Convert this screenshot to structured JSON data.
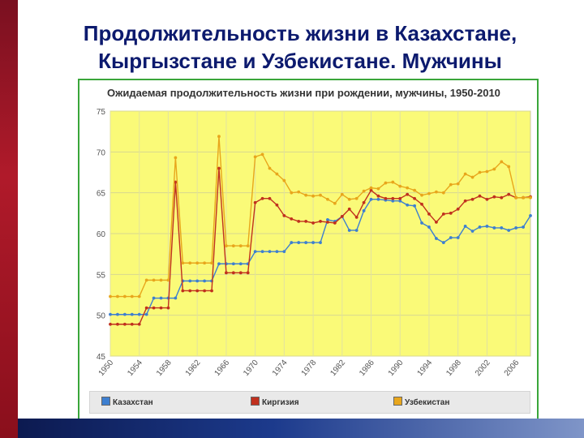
{
  "slide": {
    "title_line1": "Продолжительность жизни в Казахстане,",
    "title_line2": "Кыргызстане и Узбекистане. Мужчины"
  },
  "chart_data": {
    "type": "line",
    "title": "Ожидаемая продолжительность жизни при рождении, мужчины, 1950-2010",
    "ylim": [
      45,
      75
    ],
    "yticks": [
      45,
      50,
      55,
      60,
      65,
      70,
      75
    ],
    "xlim": [
      1950,
      2008
    ],
    "xticks": [
      1950,
      1954,
      1958,
      1962,
      1966,
      1970,
      1974,
      1978,
      1982,
      1986,
      1990,
      1994,
      1998,
      2002,
      2006
    ],
    "grid": true,
    "legend_position": "bottom",
    "plot_background": "#fafa78",
    "x": [
      1950,
      1951,
      1952,
      1953,
      1954,
      1955,
      1956,
      1957,
      1958,
      1959,
      1960,
      1961,
      1962,
      1963,
      1964,
      1965,
      1966,
      1967,
      1968,
      1969,
      1970,
      1971,
      1972,
      1973,
      1974,
      1975,
      1976,
      1977,
      1978,
      1979,
      1980,
      1981,
      1982,
      1983,
      1984,
      1985,
      1986,
      1987,
      1988,
      1989,
      1990,
      1991,
      1992,
      1993,
      1994,
      1995,
      1996,
      1997,
      1998,
      1999,
      2000,
      2001,
      2002,
      2003,
      2004,
      2005,
      2006,
      2007,
      2008
    ],
    "series": [
      {
        "name": "Казахстан",
        "color": "#3d7fd0",
        "values": [
          50.1,
          50.1,
          50.1,
          50.1,
          50.1,
          50.1,
          52.1,
          52.1,
          52.1,
          52.1,
          54.2,
          54.2,
          54.2,
          54.2,
          54.2,
          56.3,
          56.3,
          56.3,
          56.3,
          56.3,
          57.8,
          57.8,
          57.8,
          57.8,
          57.8,
          58.9,
          58.9,
          58.9,
          58.9,
          58.9,
          61.7,
          61.5,
          62.1,
          60.4,
          60.4,
          62.8,
          64.2,
          64.2,
          64.1,
          64.0,
          64.0,
          63.5,
          63.4,
          61.3,
          60.8,
          59.4,
          58.9,
          59.5,
          59.5,
          60.9,
          60.3,
          60.8,
          60.9,
          60.7,
          60.7,
          60.4,
          60.7,
          60.8,
          62.2
        ]
      },
      {
        "name": "Киргизия",
        "color": "#c0301e",
        "values": [
          48.9,
          48.9,
          48.9,
          48.9,
          48.9,
          50.9,
          50.9,
          50.9,
          50.9,
          66.3,
          53.0,
          53.0,
          53.0,
          53.0,
          53.0,
          68.0,
          55.2,
          55.2,
          55.2,
          55.2,
          63.8,
          64.3,
          64.3,
          63.5,
          62.2,
          61.8,
          61.5,
          61.5,
          61.3,
          61.5,
          61.4,
          61.3,
          62.1,
          63.0,
          62.0,
          63.8,
          65.3,
          64.6,
          64.3,
          64.3,
          64.3,
          64.8,
          64.3,
          63.6,
          62.4,
          61.4,
          62.4,
          62.5,
          63.0,
          64.0,
          64.2,
          64.6,
          64.2,
          64.5,
          64.4,
          64.8,
          64.4,
          64.4,
          64.5
        ]
      },
      {
        "name": "Узбекистан",
        "color": "#e8a61c",
        "values": [
          52.3,
          52.3,
          52.3,
          52.3,
          52.3,
          54.3,
          54.3,
          54.3,
          54.3,
          69.3,
          56.4,
          56.4,
          56.4,
          56.4,
          56.4,
          71.9,
          58.5,
          58.5,
          58.5,
          58.5,
          69.4,
          69.7,
          68.0,
          67.3,
          66.5,
          65.0,
          65.1,
          64.7,
          64.6,
          64.7,
          64.2,
          63.7,
          64.8,
          64.2,
          64.3,
          65.2,
          65.6,
          65.5,
          66.2,
          66.3,
          65.8,
          65.6,
          65.3,
          64.7,
          64.9,
          65.1,
          65.0,
          66.0,
          66.1,
          67.3,
          66.9,
          67.5,
          67.6,
          67.9,
          68.8,
          68.2,
          64.4,
          64.4,
          64.4
        ]
      }
    ]
  }
}
